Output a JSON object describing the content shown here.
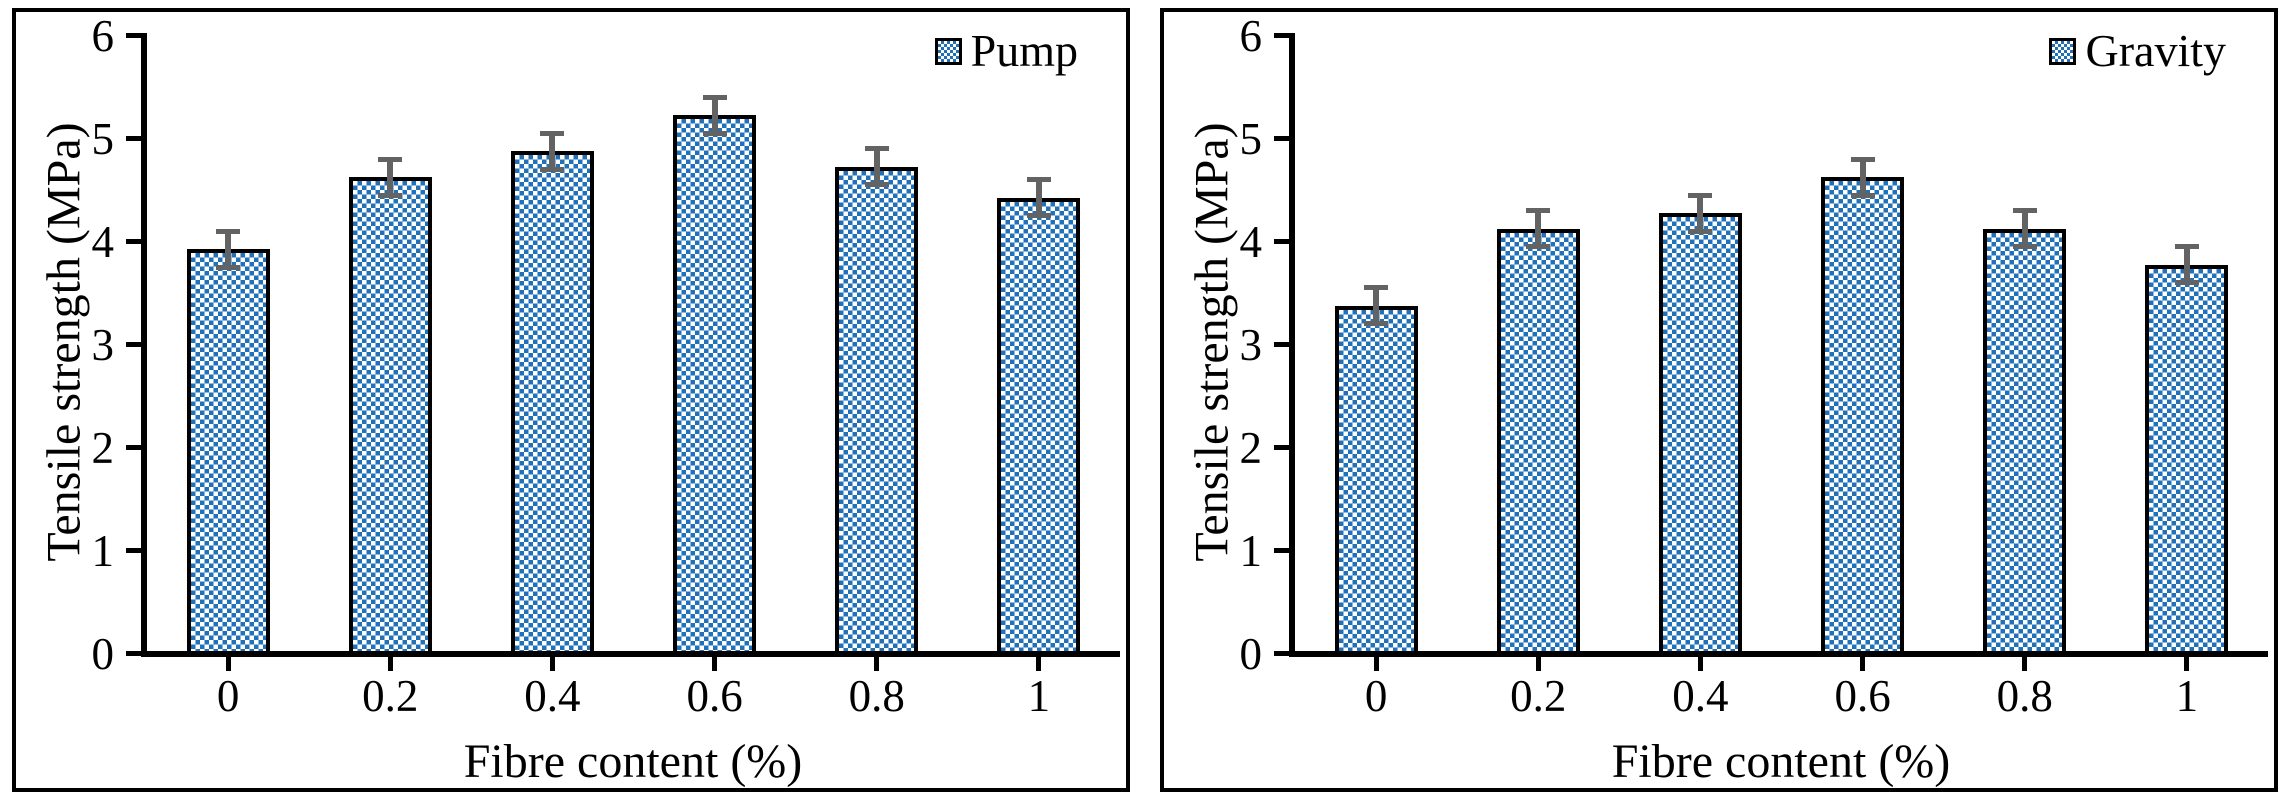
{
  "page": {
    "background_color": "#ffffff"
  },
  "chart_data": [
    {
      "type": "bar",
      "legend": "Pump",
      "legend_position": "top-right",
      "categories": [
        "0",
        "0.2",
        "0.4",
        "0.6",
        "0.8",
        "1"
      ],
      "values": [
        3.9,
        4.6,
        4.85,
        5.2,
        4.7,
        4.4
      ],
      "error_bars": [
        0.18,
        0.18,
        0.18,
        0.18,
        0.18,
        0.18
      ],
      "xlabel": "Fibre content (%)",
      "ylabel": "Tensile strength (MPa)",
      "ylim": [
        0,
        6
      ],
      "yticks": [
        0,
        1,
        2,
        3,
        4,
        5,
        6
      ],
      "grid": false,
      "bar_pattern": "diagonal-checkerboard",
      "bar_fill_color": "#2171b8",
      "bar_border_color": "#000000",
      "error_bar_color": "#636363"
    },
    {
      "type": "bar",
      "legend": "Gravity",
      "legend_position": "top-right",
      "categories": [
        "0",
        "0.2",
        "0.4",
        "0.6",
        "0.8",
        "1"
      ],
      "values": [
        3.35,
        4.1,
        4.25,
        4.6,
        4.1,
        3.75
      ],
      "error_bars": [
        0.18,
        0.18,
        0.18,
        0.18,
        0.18,
        0.18
      ],
      "xlabel": "Fibre content (%)",
      "ylabel": "Tensile strength (MPa)",
      "ylim": [
        0,
        6
      ],
      "yticks": [
        0,
        1,
        2,
        3,
        4,
        5,
        6
      ],
      "grid": false,
      "bar_pattern": "diagonal-checkerboard",
      "bar_fill_color": "#2171b8",
      "bar_border_color": "#000000",
      "error_bar_color": "#636363"
    }
  ]
}
